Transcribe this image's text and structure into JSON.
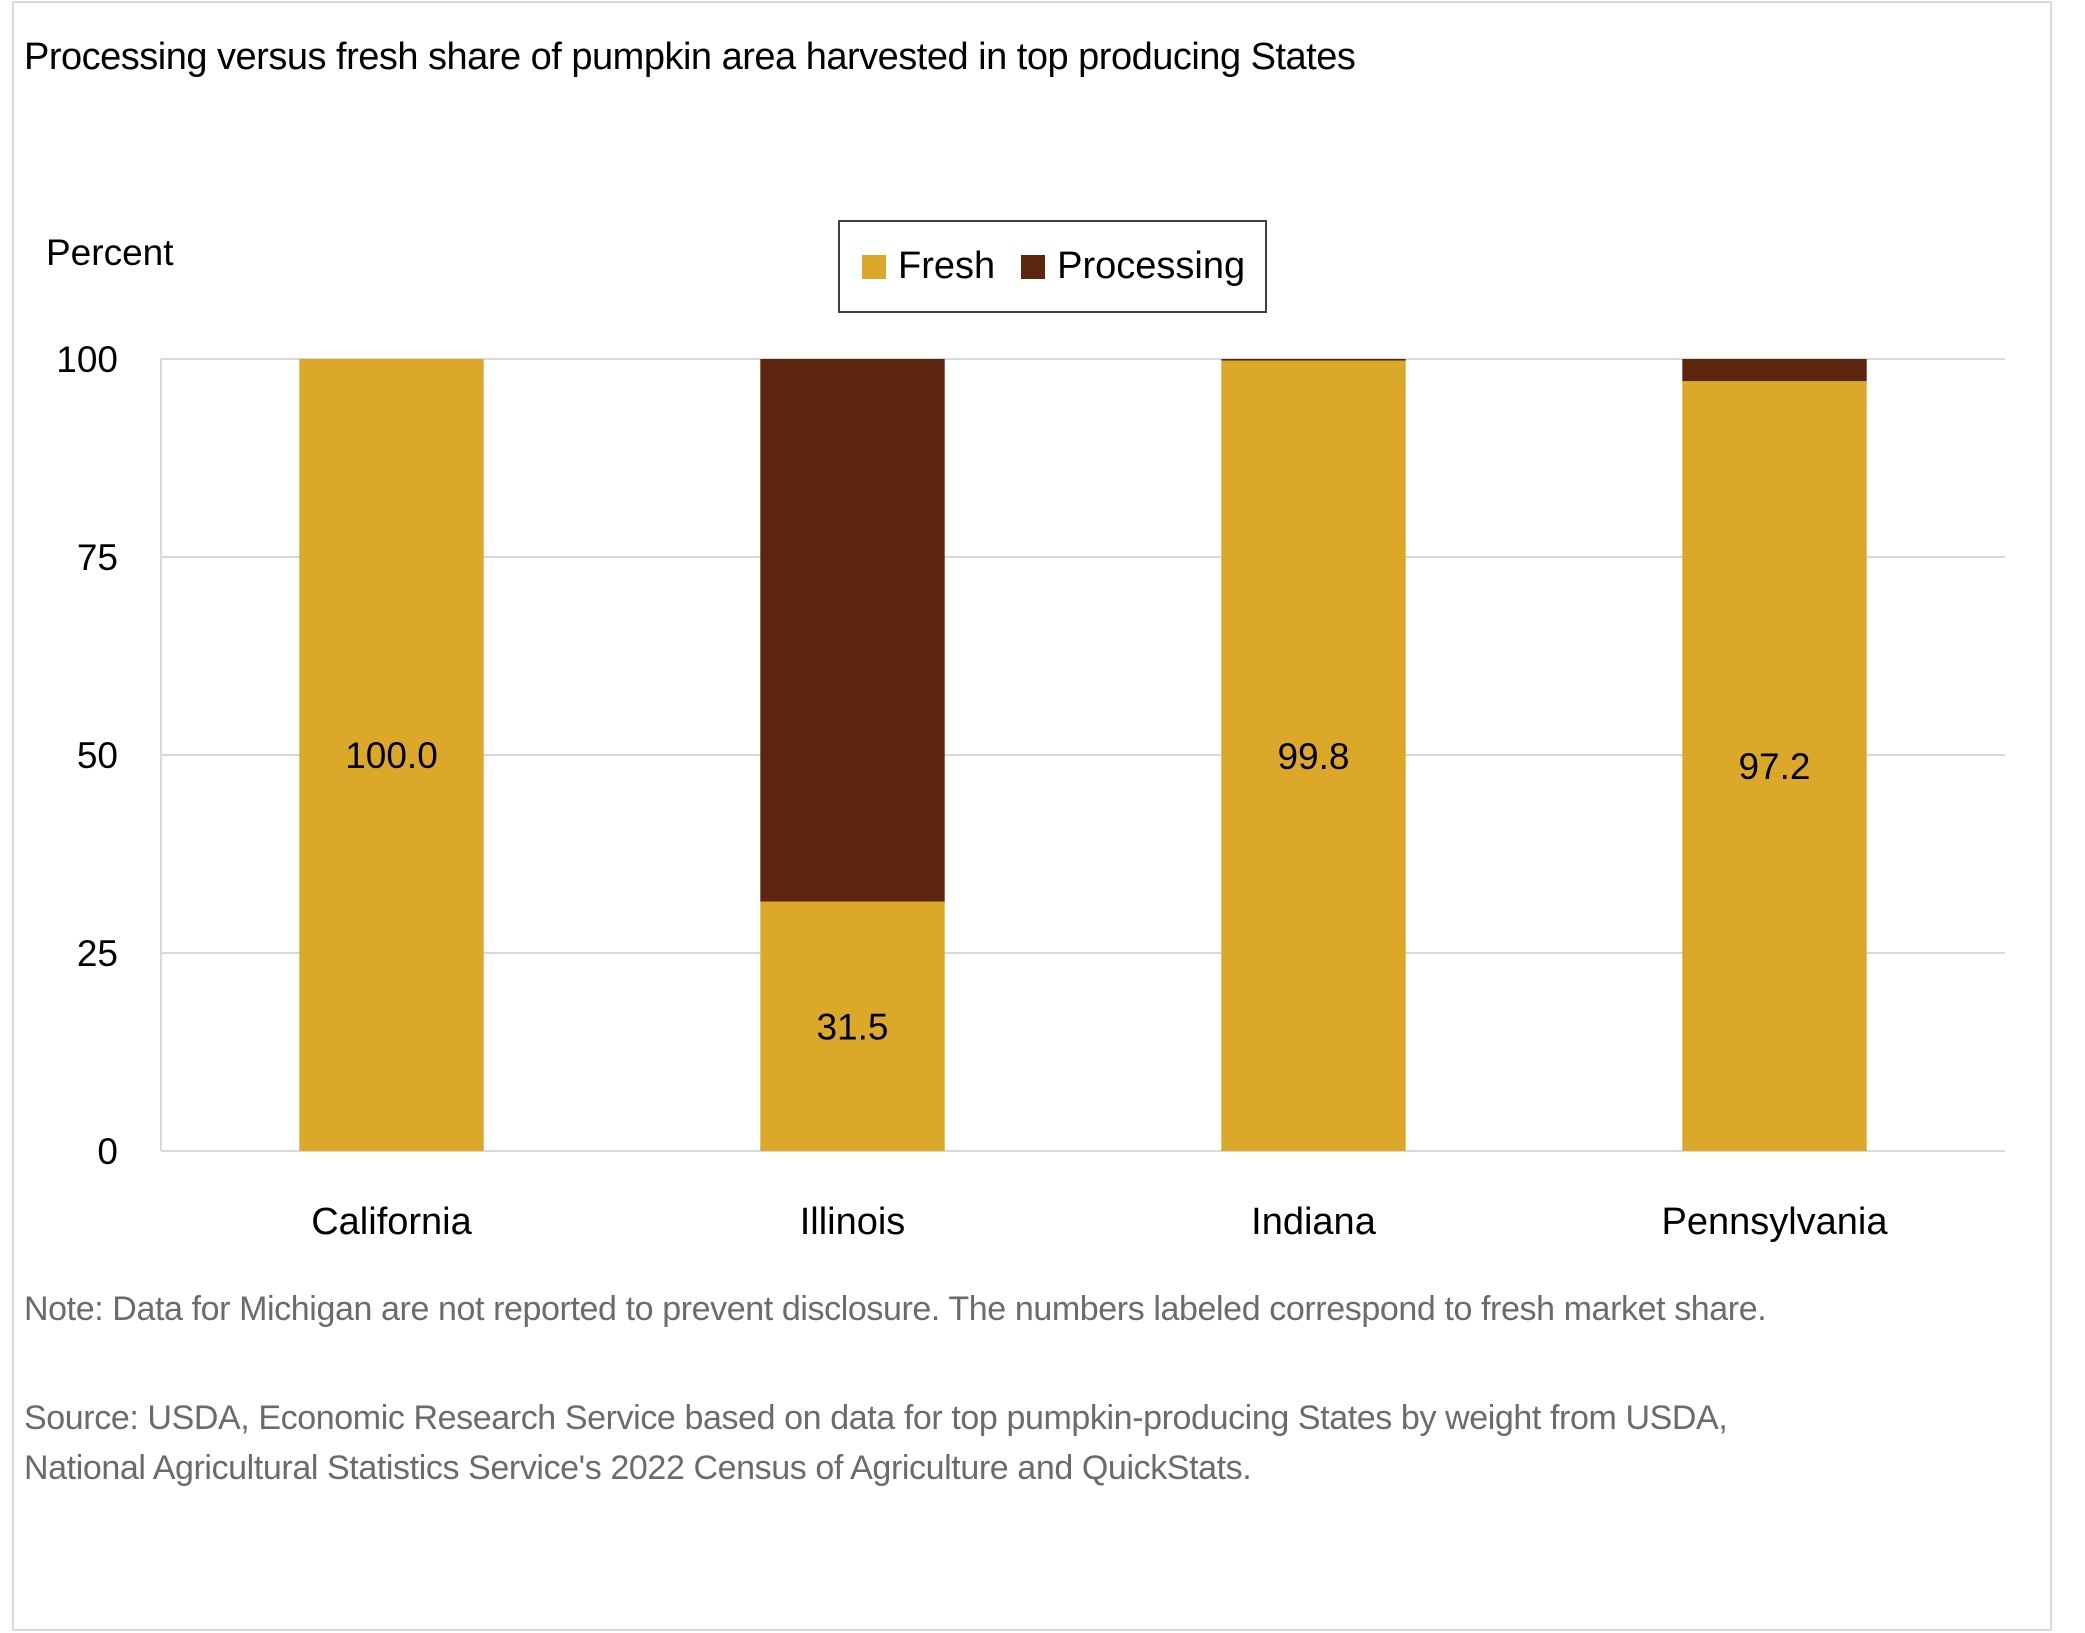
{
  "title": "Processing versus fresh share of pumpkin area harvested in top producing States",
  "note": "Note: Data for Michigan are not reported to prevent disclosure. The numbers labeled correspond to fresh market share.",
  "source": {
    "line1": "Source: USDA, Economic Research Service based on data for top pumpkin-producing States by weight from USDA,",
    "line2": "National Agricultural Statistics Service's 2022 Census of Agriculture and QuickStats."
  },
  "colors": {
    "fresh": "#DBA829",
    "processing": "#5C250E",
    "grid": "#d9d9d9",
    "text": "#000000",
    "note_text": "#6b6b6b"
  },
  "chart_data": {
    "type": "bar",
    "stacked": true,
    "title": "Processing versus fresh share of pumpkin area harvested in top producing States",
    "xlabel": "",
    "ylabel": "Percent",
    "ylim": [
      0,
      100
    ],
    "yticks": [
      0,
      25,
      50,
      75,
      100
    ],
    "grid": true,
    "legend_position": "top-center",
    "categories": [
      "California",
      "Illinois",
      "Indiana",
      "Pennsylvania"
    ],
    "series": [
      {
        "name": "Fresh",
        "color": "#DBA829",
        "values": [
          100.0,
          31.5,
          99.8,
          97.2
        ]
      },
      {
        "name": "Processing",
        "color": "#5C250E",
        "values": [
          0.0,
          68.5,
          0.2,
          2.8
        ]
      }
    ],
    "data_labels": [
      "100.0",
      "31.5",
      "99.8",
      "97.2"
    ],
    "data_label_series": "Fresh"
  }
}
